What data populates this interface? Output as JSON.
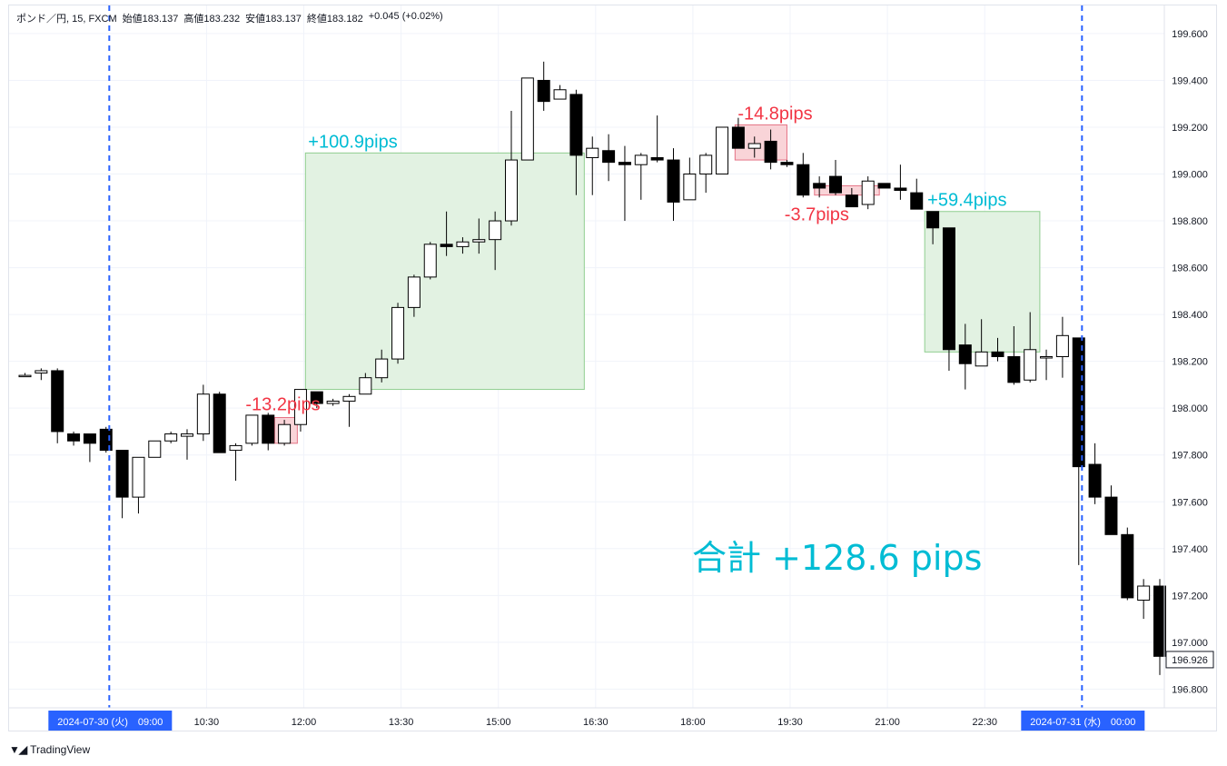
{
  "header": {
    "symbol": "ポンド／円, 15, FXCM",
    "open": "始値183.137",
    "high": "高値183.232",
    "low": "安値183.137",
    "close": "終値183.182",
    "change": "+0.045 (+0.02%)"
  },
  "footer": {
    "brand": "TradingView",
    "logo_icon": "tradingview-logo-icon"
  },
  "colors": {
    "up_body": "#ffffff",
    "down_body": "#000000",
    "wick": "#000000",
    "profit_fill": "#e2f2e2",
    "profit_stroke": "#8fce8f",
    "profit_text": "#00bcd4",
    "loss_fill": "#f9d4d8",
    "loss_stroke": "#e57385",
    "loss_text": "#f23645",
    "session_line": "#2962ff",
    "total_text": "#00bcd4"
  },
  "chart_data": {
    "type": "candlestick",
    "title": "",
    "ylim": [
      196.72,
      199.72
    ],
    "y_ticks": [
      "199.600",
      "199.400",
      "199.200",
      "199.000",
      "198.800",
      "198.600",
      "198.400",
      "198.200",
      "198.000",
      "197.800",
      "197.600",
      "197.400",
      "197.200",
      "197.000",
      "196.800"
    ],
    "x_ticks": [
      {
        "bar": 5.2,
        "label": "2024-07-30 (火)　09:00",
        "highlight": true
      },
      {
        "bar": 11.2,
        "label": "10:30"
      },
      {
        "bar": 17.2,
        "label": "12:00"
      },
      {
        "bar": 23.2,
        "label": "13:30"
      },
      {
        "bar": 29.2,
        "label": "15:00"
      },
      {
        "bar": 35.2,
        "label": "16:30"
      },
      {
        "bar": 41.2,
        "label": "18:00"
      },
      {
        "bar": 47.2,
        "label": "19:30"
      },
      {
        "bar": 53.2,
        "label": "21:00"
      },
      {
        "bar": 59.2,
        "label": "22:30"
      },
      {
        "bar": 65.2,
        "label": "2024-07-31 (水)　00:00",
        "highlight": true
      }
    ],
    "session_lines_bar": [
      5.2,
      65.2
    ],
    "last_price": "196.926",
    "candles": [
      [
        198.14,
        198.15,
        198.14,
        198.14
      ],
      [
        198.15,
        198.17,
        198.12,
        198.16
      ],
      [
        198.16,
        198.17,
        197.85,
        197.9
      ],
      [
        197.89,
        197.9,
        197.84,
        197.86
      ],
      [
        197.89,
        197.89,
        197.77,
        197.85
      ],
      [
        197.91,
        197.92,
        197.81,
        197.82
      ],
      [
        197.82,
        197.82,
        197.53,
        197.62
      ],
      [
        197.62,
        197.79,
        197.55,
        197.79
      ],
      [
        197.79,
        197.86,
        197.79,
        197.86
      ],
      [
        197.86,
        197.9,
        197.85,
        197.89
      ],
      [
        197.88,
        197.91,
        197.78,
        197.89
      ],
      [
        197.89,
        198.1,
        197.86,
        198.06
      ],
      [
        198.06,
        198.07,
        197.81,
        197.81
      ],
      [
        197.82,
        197.85,
        197.69,
        197.84
      ],
      [
        197.85,
        197.97,
        197.84,
        197.97
      ],
      [
        197.97,
        197.98,
        197.82,
        197.85
      ],
      [
        197.85,
        197.95,
        197.84,
        197.93
      ],
      [
        197.93,
        198.08,
        197.9,
        198.08
      ],
      [
        198.07,
        198.07,
        198.0,
        198.02
      ],
      [
        198.02,
        198.04,
        198.01,
        198.03
      ],
      [
        198.03,
        198.06,
        197.92,
        198.05
      ],
      [
        198.06,
        198.15,
        198.06,
        198.13
      ],
      [
        198.13,
        198.25,
        198.11,
        198.21
      ],
      [
        198.21,
        198.45,
        198.19,
        198.43
      ],
      [
        198.43,
        198.57,
        198.39,
        198.56
      ],
      [
        198.56,
        198.71,
        198.55,
        198.7
      ],
      [
        198.7,
        198.84,
        198.65,
        198.69
      ],
      [
        198.69,
        198.73,
        198.66,
        198.71
      ],
      [
        198.71,
        198.81,
        198.66,
        198.72
      ],
      [
        198.72,
        198.84,
        198.59,
        198.8
      ],
      [
        198.8,
        199.27,
        198.78,
        199.06
      ],
      [
        199.06,
        199.41,
        199.06,
        199.41
      ],
      [
        199.4,
        199.48,
        199.27,
        199.31
      ],
      [
        199.32,
        199.38,
        199.32,
        199.36
      ],
      [
        199.34,
        199.36,
        198.91,
        199.08
      ],
      [
        199.07,
        199.16,
        198.91,
        199.11
      ],
      [
        199.1,
        199.17,
        198.97,
        199.05
      ],
      [
        199.05,
        199.12,
        198.8,
        199.04
      ],
      [
        199.04,
        199.09,
        198.89,
        199.08
      ],
      [
        199.07,
        199.25,
        199.05,
        199.06
      ],
      [
        199.06,
        199.11,
        198.8,
        198.88
      ],
      [
        198.89,
        199.07,
        198.89,
        199.0
      ],
      [
        199.0,
        199.09,
        198.92,
        199.08
      ],
      [
        199.0,
        199.18,
        199.0,
        199.2
      ],
      [
        199.2,
        199.24,
        199.11,
        199.11
      ],
      [
        199.11,
        199.16,
        199.07,
        199.13
      ],
      [
        199.14,
        199.19,
        199.02,
        199.05
      ],
      [
        199.05,
        199.06,
        199.03,
        199.04
      ],
      [
        199.04,
        199.09,
        198.9,
        198.91
      ],
      [
        198.96,
        198.99,
        198.9,
        198.94
      ],
      [
        198.99,
        199.06,
        198.91,
        198.92
      ],
      [
        198.91,
        198.94,
        198.86,
        198.86
      ],
      [
        198.87,
        198.99,
        198.85,
        198.97
      ],
      [
        198.96,
        198.96,
        198.96,
        198.94
      ],
      [
        198.94,
        199.04,
        198.89,
        198.93
      ],
      [
        198.92,
        198.98,
        198.87,
        198.85
      ],
      [
        198.84,
        198.84,
        198.7,
        198.77
      ],
      [
        198.77,
        198.77,
        198.16,
        198.25
      ],
      [
        198.27,
        198.36,
        198.08,
        198.19
      ],
      [
        198.18,
        198.38,
        198.18,
        198.24
      ],
      [
        198.24,
        198.3,
        198.2,
        198.22
      ],
      [
        198.22,
        198.35,
        198.1,
        198.11
      ],
      [
        198.12,
        198.41,
        198.11,
        198.25
      ],
      [
        198.22,
        198.25,
        198.12,
        198.22
      ],
      [
        198.22,
        198.39,
        198.13,
        198.31
      ],
      [
        198.3,
        198.3,
        197.33,
        197.75
      ],
      [
        197.76,
        197.85,
        197.59,
        197.62
      ],
      [
        197.62,
        197.67,
        197.47,
        197.46
      ],
      [
        197.46,
        197.49,
        197.18,
        197.19
      ],
      [
        197.18,
        197.27,
        197.1,
        197.24
      ],
      [
        197.24,
        197.27,
        196.86,
        196.94
      ]
    ],
    "trades": [
      {
        "label": "-13.2pips",
        "result": "loss",
        "bar_from": 15.4,
        "bar_to": 16.8,
        "top": 197.96,
        "bottom": 197.85,
        "label_pos": "top-left"
      },
      {
        "label": "+100.9pips",
        "result": "profit",
        "bar_from": 17.3,
        "bar_to": 34.5,
        "top": 199.09,
        "bottom": 198.08,
        "label_pos": "top"
      },
      {
        "label": "-14.8pips",
        "result": "loss",
        "bar_from": 43.8,
        "bar_to": 47.0,
        "top": 199.21,
        "bottom": 199.06,
        "label_pos": "top"
      },
      {
        "label": "-3.7pips",
        "result": "loss",
        "bar_from": 48.7,
        "bar_to": 52.7,
        "top": 198.95,
        "bottom": 198.91,
        "label_pos": "bottom"
      },
      {
        "label": "+59.4pips",
        "result": "profit",
        "bar_from": 55.5,
        "bar_to": 62.6,
        "top": 198.84,
        "bottom": 198.24,
        "label_pos": "top"
      }
    ],
    "total": "合計 +128.6 pips"
  }
}
